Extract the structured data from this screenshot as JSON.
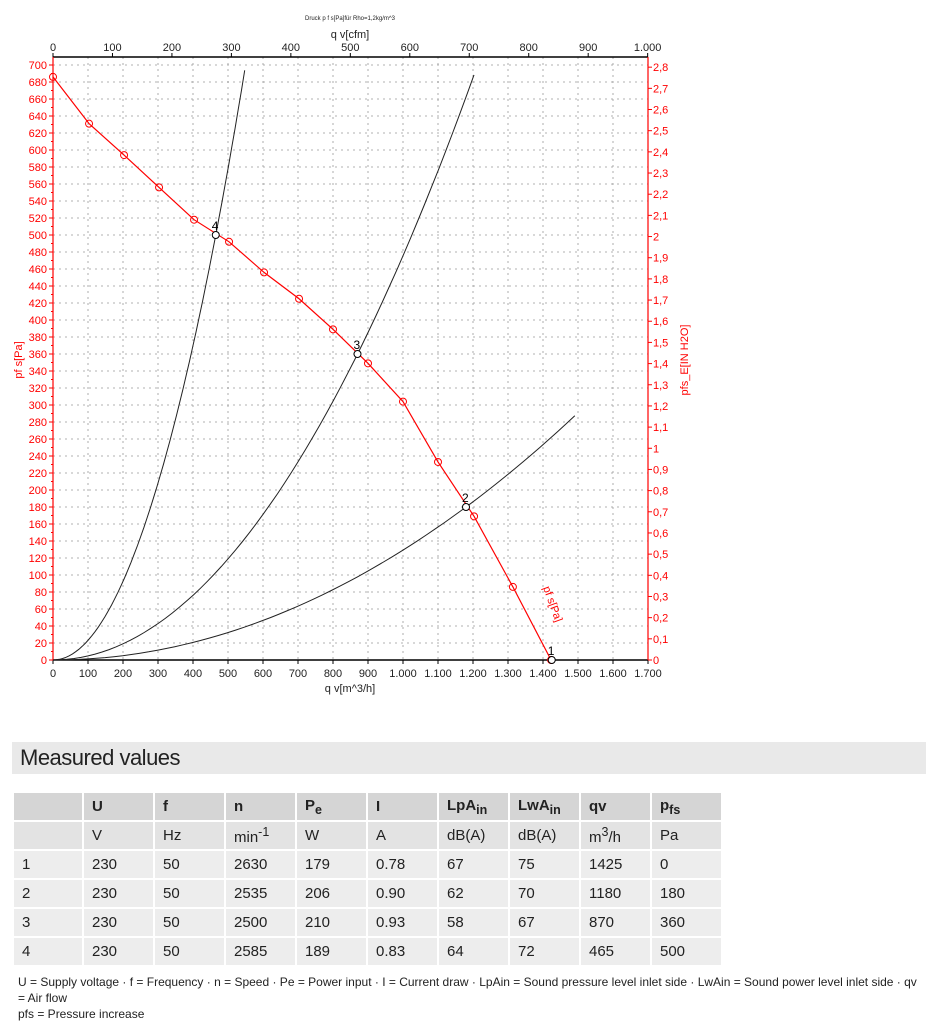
{
  "chart_data": {
    "type": "line",
    "title": "Druck p f s[Pa]für Rho=1,2kg/m^3",
    "xlabel": "q v[m^3/h]",
    "x2label": "q v[cfm]",
    "ylabel": "pf s[Pa]",
    "y2label": "pfs_E[IN H2O]",
    "xlim": [
      0,
      1700
    ],
    "ylim": [
      0,
      700
    ],
    "x2lim": [
      0,
      1000
    ],
    "y2lim": [
      0,
      2.8
    ],
    "xticks": [
      "0",
      "100",
      "200",
      "300",
      "400",
      "500",
      "600",
      "700",
      "800",
      "900",
      "1.000",
      "1.100",
      "1.200",
      "1.300",
      "1.400",
      "1.500",
      "1.600",
      "1.700"
    ],
    "x2ticks": [
      "0",
      "100",
      "200",
      "300",
      "400",
      "500",
      "600",
      "700",
      "800",
      "900",
      "1.000"
    ],
    "yticks": [
      0,
      20,
      40,
      60,
      80,
      100,
      120,
      140,
      160,
      180,
      200,
      220,
      240,
      260,
      280,
      300,
      320,
      340,
      360,
      380,
      400,
      420,
      440,
      460,
      480,
      500,
      520,
      540,
      560,
      580,
      600,
      620,
      640,
      660,
      680,
      700
    ],
    "y2ticks": [
      "0",
      "0,1",
      "0,2",
      "0,3",
      "0,4",
      "0,5",
      "0,6",
      "0,7",
      "0,8",
      "0,9",
      "1",
      "1,1",
      "1,2",
      "1,3",
      "1,4",
      "1,5",
      "1,6",
      "1,7",
      "1,8",
      "1,9",
      "2",
      "2,1",
      "2,2",
      "2,3",
      "2,4",
      "2,5",
      "2,6",
      "2,7",
      "2,8"
    ],
    "grid": true,
    "fan_curve": {
      "name": "pf s[Pa]",
      "color": "#ff0000",
      "x": [
        0,
        103,
        203,
        303,
        403,
        503,
        603,
        703,
        800,
        900,
        1000,
        1100,
        1203,
        1314,
        1423
      ],
      "y": [
        686,
        631,
        594,
        556,
        518,
        492,
        456,
        425,
        389,
        349,
        304,
        233,
        169,
        86,
        0
      ]
    },
    "system_curves": [
      {
        "label": "1",
        "point": [
          1425,
          0
        ]
      },
      {
        "label": "2",
        "point": [
          1180,
          180
        ],
        "x_end": 1491
      },
      {
        "label": "3",
        "point": [
          870,
          360
        ],
        "x_end": 1203
      },
      {
        "label": "4",
        "point": [
          465,
          500
        ],
        "x_end": 557
      }
    ],
    "system_color": "#222222"
  },
  "section_title": "Measured values",
  "table": {
    "headers": [
      "",
      "U",
      "f",
      "n",
      "Pe",
      "I",
      "LpAin",
      "LwAin",
      "qv",
      "pfs"
    ],
    "units": [
      "",
      "V",
      "Hz",
      "min-1",
      "W",
      "A",
      "dB(A)",
      "dB(A)",
      "m3/h",
      "Pa"
    ],
    "rows": [
      [
        "1",
        "230",
        "50",
        "2630",
        "179",
        "0.78",
        "67",
        "75",
        "1425",
        "0"
      ],
      [
        "2",
        "230",
        "50",
        "2535",
        "206",
        "0.90",
        "62",
        "70",
        "1180",
        "180"
      ],
      [
        "3",
        "230",
        "50",
        "2500",
        "210",
        "0.93",
        "58",
        "67",
        "870",
        "360"
      ],
      [
        "4",
        "230",
        "50",
        "2585",
        "189",
        "0.83",
        "64",
        "72",
        "465",
        "500"
      ]
    ]
  },
  "legend_line1": "U = Supply voltage · f = Frequency · n = Speed · Pe = Power input · I = Current draw · LpAin = Sound pressure level inlet side · LwAin = Sound power level inlet side · qv = Air flow",
  "legend_line2": "pfs = Pressure increase"
}
